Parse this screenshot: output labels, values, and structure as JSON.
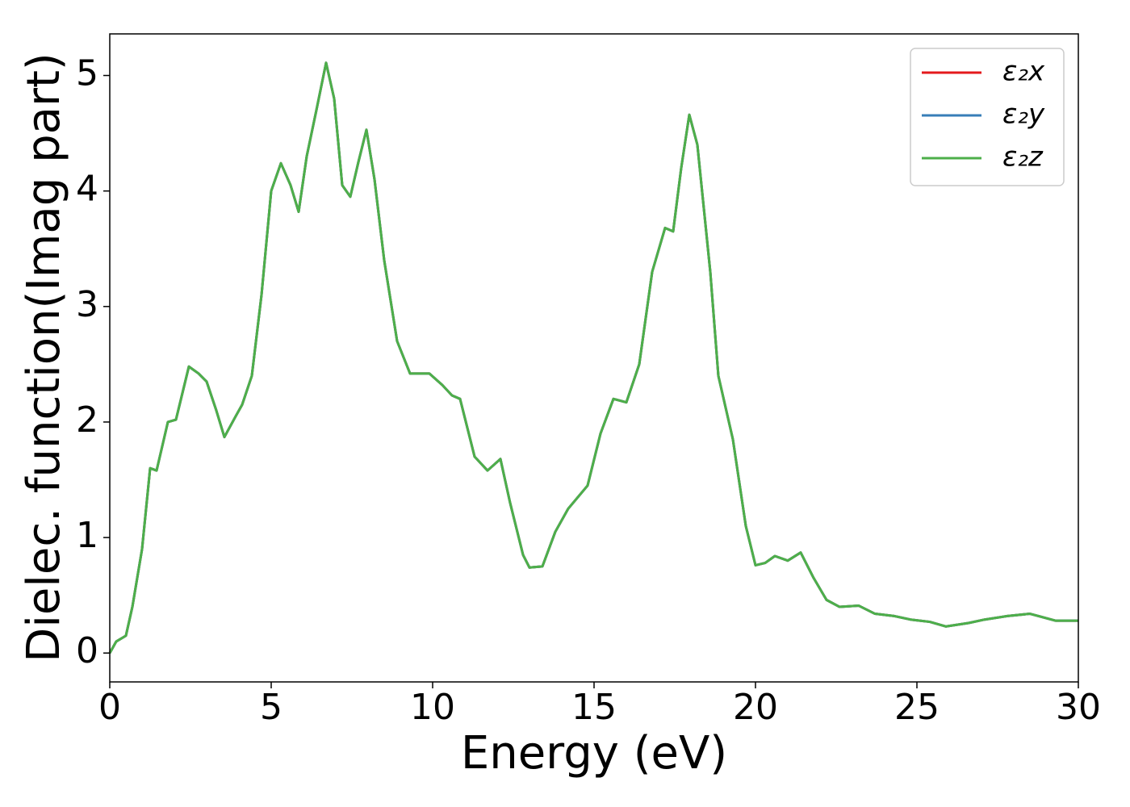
{
  "chart_data": {
    "type": "line",
    "xlabel": "Energy (eV)",
    "ylabel": "Dielec. function(Imag part)",
    "x": [
      0,
      0.2,
      0.5,
      0.7,
      1.0,
      1.25,
      1.45,
      1.8,
      2.05,
      2.45,
      2.75,
      3.0,
      3.3,
      3.55,
      3.9,
      4.1,
      4.4,
      4.7,
      5.0,
      5.3,
      5.6,
      5.85,
      6.1,
      6.4,
      6.7,
      6.95,
      7.2,
      7.45,
      7.7,
      7.95,
      8.2,
      8.5,
      8.9,
      9.3,
      9.9,
      10.3,
      10.6,
      10.85,
      11.3,
      11.7,
      12.1,
      12.4,
      12.8,
      13.0,
      13.4,
      13.8,
      14.2,
      14.8,
      15.2,
      15.6,
      16.0,
      16.4,
      16.8,
      17.2,
      17.45,
      17.7,
      17.95,
      18.2,
      18.6,
      18.85,
      19.3,
      19.7,
      20.0,
      20.3,
      20.6,
      21.0,
      21.4,
      21.8,
      22.2,
      22.6,
      23.2,
      23.7,
      24.3,
      24.8,
      25.4,
      25.9,
      26.6,
      27.1,
      27.8,
      28.5,
      29.3,
      30
    ],
    "series": [
      {
        "name": "ε₂x",
        "color": "#e41a1c",
        "values": [
          0.0,
          0.1,
          0.15,
          0.4,
          0.9,
          1.6,
          1.58,
          2.0,
          2.02,
          2.48,
          2.42,
          2.35,
          2.1,
          1.87,
          2.05,
          2.15,
          2.4,
          3.1,
          4.0,
          4.24,
          4.05,
          3.82,
          4.3,
          4.7,
          5.11,
          4.8,
          4.05,
          3.95,
          4.25,
          4.53,
          4.1,
          3.4,
          2.7,
          2.42,
          2.42,
          2.32,
          2.23,
          2.2,
          1.7,
          1.58,
          1.68,
          1.3,
          0.85,
          0.74,
          0.75,
          1.05,
          1.25,
          1.45,
          1.9,
          2.2,
          2.17,
          2.5,
          3.3,
          3.68,
          3.65,
          4.2,
          4.66,
          4.4,
          3.3,
          2.4,
          1.85,
          1.1,
          0.76,
          0.78,
          0.84,
          0.8,
          0.87,
          0.65,
          0.46,
          0.4,
          0.41,
          0.34,
          0.32,
          0.29,
          0.27,
          0.23,
          0.26,
          0.29,
          0.32,
          0.34,
          0.28,
          0.28
        ]
      },
      {
        "name": "ε₂y",
        "color": "#377eb8",
        "values": [
          0.0,
          0.1,
          0.15,
          0.4,
          0.9,
          1.6,
          1.58,
          2.0,
          2.02,
          2.48,
          2.42,
          2.35,
          2.1,
          1.87,
          2.05,
          2.15,
          2.4,
          3.1,
          4.0,
          4.24,
          4.05,
          3.82,
          4.3,
          4.7,
          5.11,
          4.8,
          4.05,
          3.95,
          4.25,
          4.53,
          4.1,
          3.4,
          2.7,
          2.42,
          2.42,
          2.32,
          2.23,
          2.2,
          1.7,
          1.58,
          1.68,
          1.3,
          0.85,
          0.74,
          0.75,
          1.05,
          1.25,
          1.45,
          1.9,
          2.2,
          2.17,
          2.5,
          3.3,
          3.68,
          3.65,
          4.2,
          4.66,
          4.4,
          3.3,
          2.4,
          1.85,
          1.1,
          0.76,
          0.78,
          0.84,
          0.8,
          0.87,
          0.65,
          0.46,
          0.4,
          0.41,
          0.34,
          0.32,
          0.29,
          0.27,
          0.23,
          0.26,
          0.29,
          0.32,
          0.34,
          0.28,
          0.28
        ]
      },
      {
        "name": "ε₂z",
        "color": "#4daf4a",
        "values": [
          0.0,
          0.1,
          0.15,
          0.4,
          0.9,
          1.6,
          1.58,
          2.0,
          2.02,
          2.48,
          2.42,
          2.35,
          2.1,
          1.87,
          2.05,
          2.15,
          2.4,
          3.1,
          4.0,
          4.24,
          4.05,
          3.82,
          4.3,
          4.7,
          5.11,
          4.8,
          4.05,
          3.95,
          4.25,
          4.53,
          4.1,
          3.4,
          2.7,
          2.42,
          2.42,
          2.32,
          2.23,
          2.2,
          1.7,
          1.58,
          1.68,
          1.3,
          0.85,
          0.74,
          0.75,
          1.05,
          1.25,
          1.45,
          1.9,
          2.2,
          2.17,
          2.5,
          3.3,
          3.68,
          3.65,
          4.2,
          4.66,
          4.4,
          3.3,
          2.4,
          1.85,
          1.1,
          0.76,
          0.78,
          0.84,
          0.8,
          0.87,
          0.65,
          0.46,
          0.4,
          0.41,
          0.34,
          0.32,
          0.29,
          0.27,
          0.23,
          0.26,
          0.29,
          0.32,
          0.34,
          0.28,
          0.28
        ]
      }
    ],
    "xlim": [
      0,
      30
    ],
    "xticks": [
      0,
      5,
      10,
      15,
      20,
      25,
      30
    ],
    "ylim": [
      -0.25,
      5.36
    ],
    "yticks": [
      0,
      1,
      2,
      3,
      4,
      5
    ],
    "legend": "upper right",
    "grid": false
  }
}
